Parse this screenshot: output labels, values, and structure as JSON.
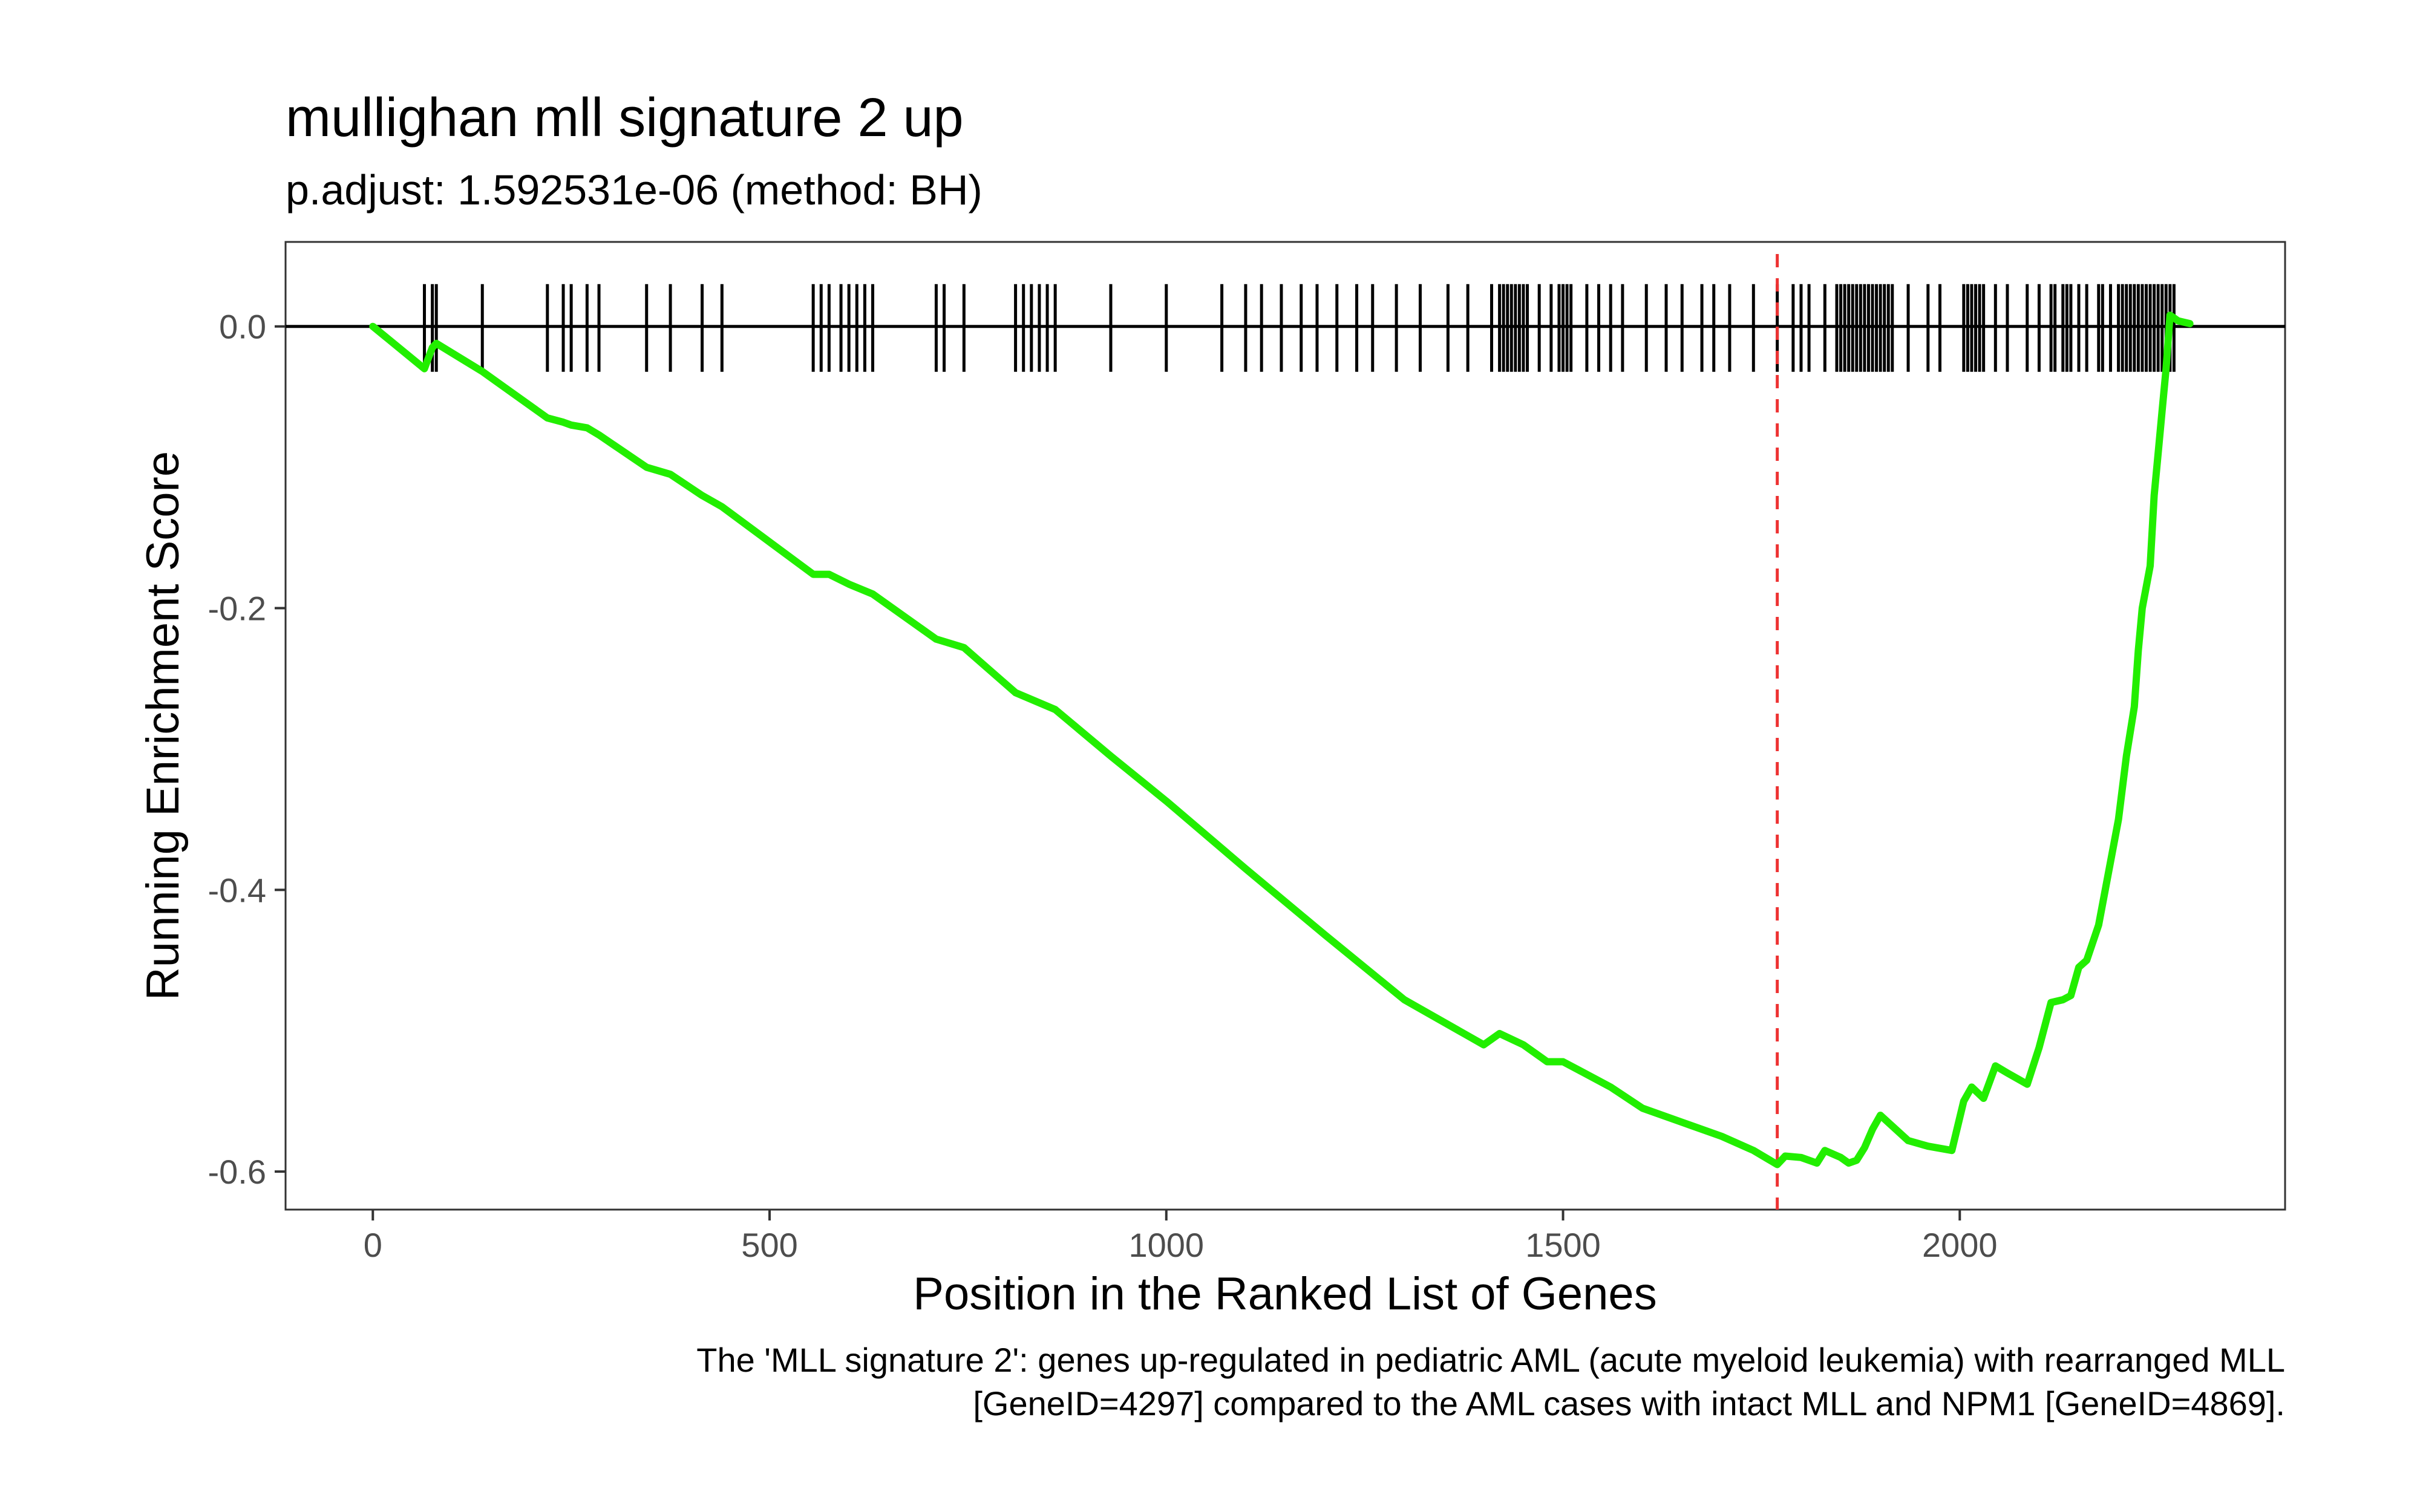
{
  "chart_data": {
    "type": "line",
    "title": "mullighan mll signature 2 up",
    "subtitle": "p.adjust: 1.592531e-06 (method: BH)",
    "xlabel": "Position in the Ranked List of Genes",
    "ylabel": "Running Enrichment Score",
    "caption_lines": [
      "The 'MLL signature 2': genes up-regulated in pediatric AML (acute myeloid leukemia) with rearranged MLL",
      "[GeneID=4297] compared to the AML cases with intact MLL and NPM1 [GeneID=4869]."
    ],
    "xlim": [
      -110,
      2410
    ],
    "ylim": [
      -0.627,
      0.06
    ],
    "x_ticks": [
      0,
      500,
      1000,
      1500,
      2000
    ],
    "x_tick_labels": [
      "0",
      "500",
      "1000",
      "1500",
      "2000"
    ],
    "y_ticks": [
      0.0,
      -0.2,
      -0.4,
      -0.6
    ],
    "y_tick_labels": [
      "0.0",
      "-0.2",
      "-0.4",
      "-0.6"
    ],
    "grid": false,
    "legend": "none",
    "colors": {
      "running_score": "#22ee00",
      "zero_line": "#000000",
      "hits": "#000000",
      "max_deviation_line": "#ee3333"
    },
    "max_deviation_position": 1770,
    "hit_positions": [
      65,
      75,
      80,
      138,
      220,
      240,
      250,
      270,
      285,
      345,
      375,
      415,
      440,
      555,
      565,
      575,
      590,
      600,
      610,
      620,
      630,
      710,
      720,
      745,
      810,
      820,
      830,
      840,
      850,
      860,
      930,
      1000,
      1070,
      1100,
      1120,
      1145,
      1170,
      1190,
      1215,
      1240,
      1260,
      1290,
      1320,
      1355,
      1380,
      1410,
      1420,
      1425,
      1430,
      1435,
      1440,
      1445,
      1450,
      1455,
      1470,
      1485,
      1495,
      1500,
      1505,
      1510,
      1530,
      1545,
      1560,
      1575,
      1605,
      1630,
      1650,
      1675,
      1690,
      1710,
      1740,
      1770,
      1790,
      1800,
      1810,
      1830,
      1845,
      1850,
      1855,
      1860,
      1865,
      1870,
      1875,
      1880,
      1885,
      1890,
      1895,
      1900,
      1905,
      1910,
      1915,
      1935,
      1960,
      1975,
      2005,
      2010,
      2015,
      2020,
      2025,
      2030,
      2045,
      2060,
      2085,
      2100,
      2115,
      2120,
      2130,
      2135,
      2140,
      2150,
      2160,
      2175,
      2180,
      2190,
      2200,
      2205,
      2210,
      2215,
      2220,
      2225,
      2230,
      2235,
      2240,
      2245,
      2250,
      2255,
      2260,
      2265,
      2270
    ],
    "series": [
      {
        "x": [
          0,
          65,
          75,
          80,
          138,
          220,
          240,
          250,
          270,
          285,
          345,
          375,
          415,
          440,
          555,
          575,
          600,
          630,
          710,
          745,
          810,
          860,
          930,
          1000,
          1100,
          1200,
          1300,
          1400,
          1420,
          1450,
          1480,
          1500,
          1520,
          1560,
          1600,
          1650,
          1700,
          1740,
          1770,
          1780,
          1800,
          1820,
          1830,
          1850,
          1860,
          1870,
          1880,
          1890,
          1900,
          1935,
          1960,
          1990,
          2005,
          2015,
          2030,
          2045,
          2060,
          2085,
          2100,
          2115,
          2130,
          2140,
          2150,
          2160,
          2175,
          2190,
          2200,
          2210,
          2220,
          2225,
          2230,
          2240,
          2245,
          2250,
          2255,
          2260,
          2265,
          2270,
          2275,
          2290
        ],
        "y": [
          0.0,
          -0.03,
          -0.015,
          -0.012,
          -0.032,
          -0.065,
          -0.068,
          -0.07,
          -0.072,
          -0.077,
          -0.1,
          -0.105,
          -0.12,
          -0.128,
          -0.176,
          -0.176,
          -0.183,
          -0.19,
          -0.222,
          -0.228,
          -0.26,
          -0.272,
          -0.305,
          -0.337,
          -0.385,
          -0.432,
          -0.478,
          -0.51,
          -0.502,
          -0.51,
          -0.522,
          -0.522,
          -0.528,
          -0.54,
          -0.555,
          -0.565,
          -0.575,
          -0.585,
          -0.595,
          -0.589,
          -0.59,
          -0.594,
          -0.585,
          -0.59,
          -0.594,
          -0.592,
          -0.583,
          -0.57,
          -0.56,
          -0.578,
          -0.582,
          -0.585,
          -0.55,
          -0.54,
          -0.548,
          -0.525,
          -0.53,
          -0.538,
          -0.512,
          -0.48,
          -0.478,
          -0.475,
          -0.455,
          -0.45,
          -0.425,
          -0.38,
          -0.35,
          -0.305,
          -0.27,
          -0.23,
          -0.2,
          -0.17,
          -0.12,
          -0.09,
          -0.06,
          -0.03,
          0.008,
          0.006,
          0.004,
          0.002
        ]
      }
    ]
  }
}
